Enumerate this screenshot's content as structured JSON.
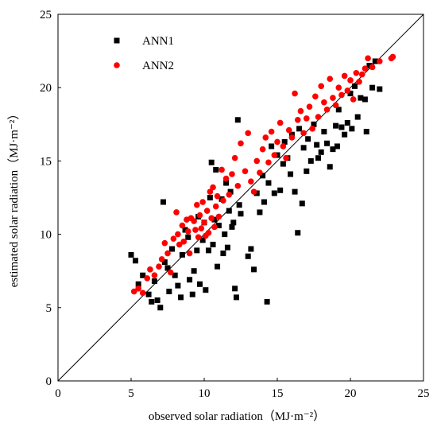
{
  "chart_data": {
    "type": "scatter",
    "title": "",
    "xlabel": "observed solar radiation（MJ·m⁻²）",
    "ylabel": "estimated solar radiation（MJ·m⁻²）",
    "xlim": [
      0,
      25
    ],
    "ylim": [
      0,
      25
    ],
    "x_ticks": [
      "0",
      "5",
      "10",
      "15",
      "20",
      "25"
    ],
    "y_ticks": [
      "0",
      "5",
      "10",
      "15",
      "20",
      "25"
    ],
    "grid": false,
    "legend_position": "top-left",
    "reference_line": {
      "from": [
        0,
        0
      ],
      "to": [
        25,
        25
      ],
      "color": "#000000"
    },
    "series": [
      {
        "name": "ANN1",
        "marker": "square",
        "color": "#000000",
        "points": [
          [
            5.0,
            8.6
          ],
          [
            5.3,
            8.2
          ],
          [
            5.5,
            6.6
          ],
          [
            5.8,
            7.2
          ],
          [
            6.2,
            5.9
          ],
          [
            6.4,
            5.4
          ],
          [
            6.6,
            6.8
          ],
          [
            6.8,
            5.5
          ],
          [
            7.0,
            5.0
          ],
          [
            7.2,
            12.2
          ],
          [
            7.3,
            8.1
          ],
          [
            7.5,
            7.7
          ],
          [
            7.6,
            6.1
          ],
          [
            7.8,
            9.0
          ],
          [
            8.0,
            7.2
          ],
          [
            8.2,
            6.5
          ],
          [
            8.4,
            5.7
          ],
          [
            8.5,
            8.6
          ],
          [
            8.7,
            10.3
          ],
          [
            8.9,
            9.8
          ],
          [
            9.0,
            6.9
          ],
          [
            9.2,
            5.9
          ],
          [
            9.3,
            7.5
          ],
          [
            9.5,
            8.9
          ],
          [
            9.6,
            11.2
          ],
          [
            9.7,
            6.6
          ],
          [
            9.9,
            9.6
          ],
          [
            10.0,
            10.8
          ],
          [
            10.1,
            6.2
          ],
          [
            10.3,
            8.9
          ],
          [
            10.4,
            12.5
          ],
          [
            10.5,
            14.9
          ],
          [
            10.6,
            9.3
          ],
          [
            10.7,
            11.0
          ],
          [
            10.8,
            14.4
          ],
          [
            10.9,
            7.8
          ],
          [
            11.0,
            10.6
          ],
          [
            11.2,
            12.4
          ],
          [
            11.3,
            8.7
          ],
          [
            11.4,
            10.0
          ],
          [
            11.5,
            13.5
          ],
          [
            11.6,
            9.1
          ],
          [
            11.7,
            11.6
          ],
          [
            11.8,
            12.9
          ],
          [
            11.9,
            10.5
          ],
          [
            12.0,
            10.8
          ],
          [
            12.1,
            6.3
          ],
          [
            12.2,
            5.7
          ],
          [
            12.3,
            17.8
          ],
          [
            12.4,
            12.0
          ],
          [
            12.5,
            11.4
          ],
          [
            13.0,
            8.5
          ],
          [
            13.2,
            9.0
          ],
          [
            13.4,
            7.6
          ],
          [
            13.6,
            12.8
          ],
          [
            13.8,
            11.5
          ],
          [
            14.0,
            14.0
          ],
          [
            14.1,
            12.2
          ],
          [
            14.3,
            5.4
          ],
          [
            14.4,
            13.5
          ],
          [
            14.6,
            16.0
          ],
          [
            14.8,
            12.8
          ],
          [
            15.0,
            15.4
          ],
          [
            15.2,
            13.0
          ],
          [
            15.4,
            14.8
          ],
          [
            15.5,
            16.3
          ],
          [
            15.7,
            15.2
          ],
          [
            15.9,
            14.1
          ],
          [
            16.0,
            16.8
          ],
          [
            16.2,
            12.9
          ],
          [
            16.4,
            10.1
          ],
          [
            16.5,
            17.2
          ],
          [
            16.7,
            12.1
          ],
          [
            16.8,
            15.9
          ],
          [
            17.0,
            14.3
          ],
          [
            17.1,
            16.5
          ],
          [
            17.3,
            15.0
          ],
          [
            17.5,
            17.5
          ],
          [
            17.7,
            16.1
          ],
          [
            17.8,
            15.2
          ],
          [
            18.0,
            15.6
          ],
          [
            18.2,
            17.0
          ],
          [
            18.4,
            16.2
          ],
          [
            18.6,
            14.6
          ],
          [
            18.8,
            15.8
          ],
          [
            19.0,
            17.4
          ],
          [
            19.1,
            16.0
          ],
          [
            19.2,
            18.5
          ],
          [
            19.4,
            17.3
          ],
          [
            19.6,
            16.8
          ],
          [
            19.8,
            17.6
          ],
          [
            20.0,
            19.6
          ],
          [
            20.1,
            17.2
          ],
          [
            20.3,
            20.1
          ],
          [
            20.5,
            18.0
          ],
          [
            20.7,
            19.3
          ],
          [
            21.0,
            19.2
          ],
          [
            21.1,
            17.0
          ],
          [
            21.3,
            21.5
          ],
          [
            21.5,
            20.0
          ],
          [
            21.7,
            21.8
          ],
          [
            22.0,
            19.9
          ]
        ]
      },
      {
        "name": "ANN2",
        "marker": "circle",
        "color": "#ff0000",
        "points": [
          [
            5.2,
            6.1
          ],
          [
            5.5,
            6.3
          ],
          [
            5.8,
            6.0
          ],
          [
            6.1,
            7.0
          ],
          [
            6.3,
            7.6
          ],
          [
            6.6,
            7.2
          ],
          [
            6.9,
            7.8
          ],
          [
            7.1,
            8.3
          ],
          [
            7.3,
            9.4
          ],
          [
            7.5,
            8.7
          ],
          [
            7.7,
            7.4
          ],
          [
            7.9,
            9.7
          ],
          [
            8.1,
            11.5
          ],
          [
            8.2,
            10.0
          ],
          [
            8.3,
            9.3
          ],
          [
            8.5,
            10.6
          ],
          [
            8.6,
            9.5
          ],
          [
            8.8,
            11.0
          ],
          [
            8.9,
            10.2
          ],
          [
            9.0,
            8.7
          ],
          [
            9.1,
            11.1
          ],
          [
            9.3,
            10.9
          ],
          [
            9.4,
            10.3
          ],
          [
            9.5,
            12.0
          ],
          [
            9.6,
            9.8
          ],
          [
            9.7,
            11.3
          ],
          [
            9.8,
            10.4
          ],
          [
            9.9,
            12.2
          ],
          [
            10.0,
            10.8
          ],
          [
            10.1,
            9.9
          ],
          [
            10.2,
            11.6
          ],
          [
            10.3,
            10.1
          ],
          [
            10.4,
            12.9
          ],
          [
            10.5,
            11.1
          ],
          [
            10.6,
            13.2
          ],
          [
            10.7,
            10.5
          ],
          [
            10.8,
            11.9
          ],
          [
            10.9,
            12.6
          ],
          [
            11.0,
            11.2
          ],
          [
            11.2,
            14.4
          ],
          [
            11.3,
            12.3
          ],
          [
            11.5,
            13.8
          ],
          [
            11.7,
            12.7
          ],
          [
            11.9,
            14.1
          ],
          [
            12.1,
            15.2
          ],
          [
            12.3,
            13.3
          ],
          [
            12.5,
            16.2
          ],
          [
            12.8,
            14.3
          ],
          [
            13.0,
            16.9
          ],
          [
            13.2,
            13.6
          ],
          [
            13.4,
            12.9
          ],
          [
            13.6,
            15.0
          ],
          [
            13.8,
            14.2
          ],
          [
            14.0,
            15.8
          ],
          [
            14.2,
            16.6
          ],
          [
            14.4,
            14.9
          ],
          [
            14.6,
            17.0
          ],
          [
            14.8,
            15.4
          ],
          [
            15.0,
            16.3
          ],
          [
            15.2,
            17.6
          ],
          [
            15.4,
            16.0
          ],
          [
            15.6,
            15.2
          ],
          [
            15.8,
            17.1
          ],
          [
            16.0,
            16.6
          ],
          [
            16.2,
            19.6
          ],
          [
            16.4,
            17.8
          ],
          [
            16.6,
            18.4
          ],
          [
            16.8,
            16.9
          ],
          [
            17.0,
            17.9
          ],
          [
            17.2,
            18.7
          ],
          [
            17.4,
            17.2
          ],
          [
            17.6,
            19.4
          ],
          [
            17.8,
            18.0
          ],
          [
            18.0,
            20.1
          ],
          [
            18.2,
            19.0
          ],
          [
            18.4,
            18.5
          ],
          [
            18.6,
            20.6
          ],
          [
            18.8,
            19.3
          ],
          [
            19.0,
            18.8
          ],
          [
            19.2,
            20.0
          ],
          [
            19.4,
            19.5
          ],
          [
            19.6,
            20.8
          ],
          [
            19.8,
            19.8
          ],
          [
            20.0,
            20.5
          ],
          [
            20.2,
            19.2
          ],
          [
            20.4,
            21.0
          ],
          [
            20.6,
            20.4
          ],
          [
            20.8,
            20.9
          ],
          [
            21.0,
            21.3
          ],
          [
            21.2,
            22.0
          ],
          [
            21.5,
            21.4
          ],
          [
            22.0,
            21.8
          ],
          [
            22.8,
            22.0
          ],
          [
            22.9,
            22.1
          ]
        ]
      }
    ]
  }
}
